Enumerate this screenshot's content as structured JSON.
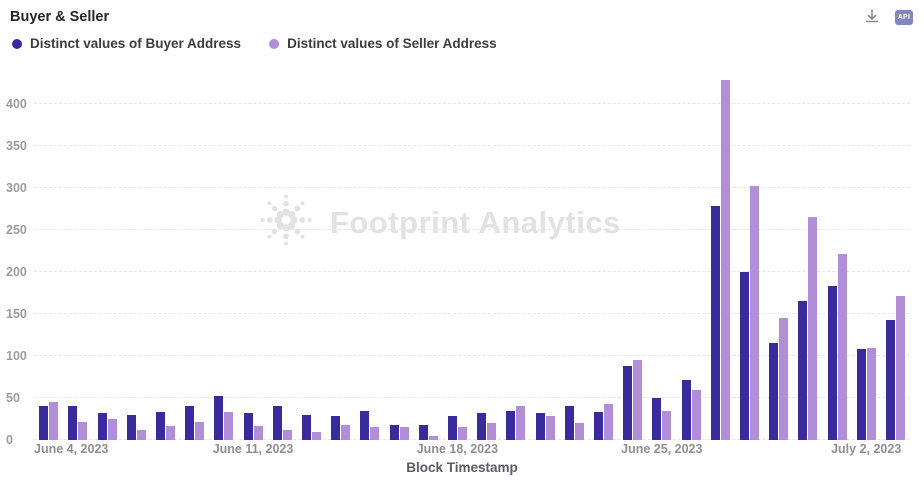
{
  "header": {
    "title": "Buyer & Seller",
    "api_badge_label": "API"
  },
  "legend": [
    {
      "label": "Distinct values of Buyer Address",
      "color": "#3a2b9d"
    },
    {
      "label": "Distinct values of Seller Address",
      "color": "#b18ed6"
    }
  ],
  "watermark": {
    "text": "Footprint Analytics"
  },
  "chart_data": {
    "type": "bar",
    "title": "Buyer & Seller",
    "xlabel": "Block Timestamp",
    "ylabel": "",
    "ylim": [
      0,
      440
    ],
    "y_ticks": [
      0,
      50,
      100,
      150,
      200,
      250,
      300,
      350,
      400
    ],
    "grid": "horizontal-dashed",
    "legend_position": "top-left",
    "categories": [
      "2023-06-04",
      "2023-06-05",
      "2023-06-06",
      "2023-06-07",
      "2023-06-08",
      "2023-06-09",
      "2023-06-10",
      "2023-06-11",
      "2023-06-12",
      "2023-06-13",
      "2023-06-14",
      "2023-06-15",
      "2023-06-16",
      "2023-06-17",
      "2023-06-18",
      "2023-06-19",
      "2023-06-20",
      "2023-06-21",
      "2023-06-22",
      "2023-06-23",
      "2023-06-24",
      "2023-06-25",
      "2023-06-26",
      "2023-06-27",
      "2023-06-28",
      "2023-06-29",
      "2023-06-30",
      "2023-07-01",
      "2023-07-02",
      "2023-07-03"
    ],
    "x_tick_labels": [
      "June 4, 2023",
      "June 11, 2023",
      "June 18, 2023",
      "June 25, 2023",
      "July 2, 2023"
    ],
    "x_tick_indices": [
      0,
      7,
      14,
      21,
      28
    ],
    "series": [
      {
        "name": "Distinct values of Buyer Address",
        "color": "#3a2b9d",
        "values": [
          40,
          40,
          32,
          30,
          33,
          40,
          52,
          32,
          40,
          30,
          28,
          35,
          18,
          18,
          28,
          32,
          35,
          32,
          40,
          33,
          88,
          50,
          72,
          278,
          200,
          115,
          165,
          183,
          108,
          143
        ]
      },
      {
        "name": "Distinct values of Seller Address",
        "color": "#b18ed6",
        "values": [
          45,
          22,
          25,
          12,
          17,
          22,
          33,
          17,
          12,
          10,
          18,
          15,
          15,
          5,
          15,
          20,
          40,
          28,
          20,
          43,
          95,
          35,
          60,
          428,
          302,
          145,
          265,
          222,
          110,
          172
        ]
      }
    ]
  }
}
